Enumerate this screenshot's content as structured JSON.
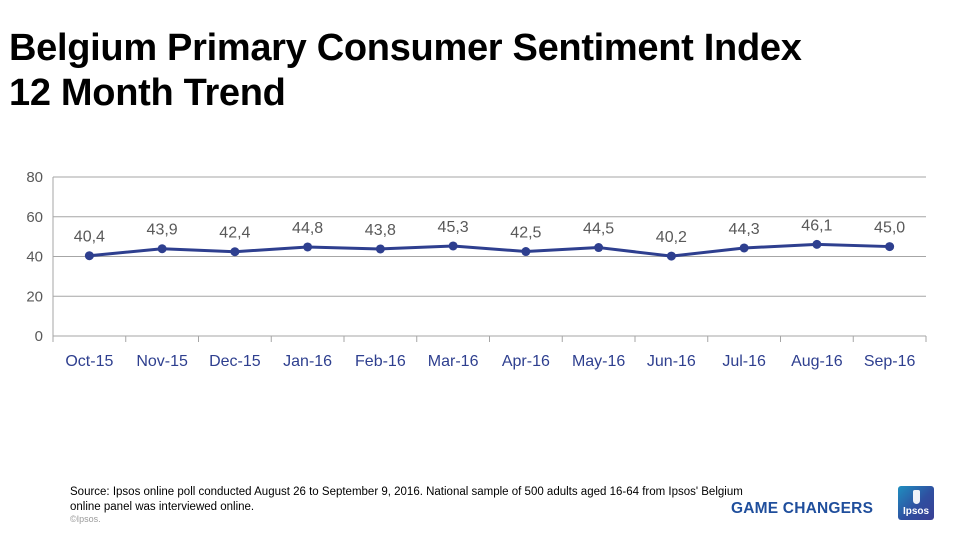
{
  "header": {
    "title_line1": "Belgium Primary Consumer Sentiment Index",
    "title_line2": "12 Month Trend"
  },
  "chart_data": {
    "type": "line",
    "categories": [
      "Oct-15",
      "Nov-15",
      "Dec-15",
      "Jan-16",
      "Feb-16",
      "Mar-16",
      "Apr-16",
      "May-16",
      "Jun-16",
      "Jul-16",
      "Aug-16",
      "Sep-16"
    ],
    "series": [
      {
        "name": "Primary Consumer Sentiment Index",
        "values": [
          40.4,
          43.9,
          42.4,
          44.8,
          43.8,
          45.3,
          42.5,
          44.5,
          40.2,
          44.3,
          46.1,
          45.0
        ],
        "labels": [
          "40,4",
          "43,9",
          "42,4",
          "44,8",
          "43,8",
          "45,3",
          "42,5",
          "44,5",
          "40,2",
          "44,3",
          "46,1",
          "45,0"
        ]
      }
    ],
    "yticks": [
      0,
      20,
      40,
      60,
      80
    ],
    "ylim": [
      0,
      80
    ],
    "grid": true,
    "xlabel": "",
    "ylabel": "",
    "line_color": "#2e3f8f",
    "label_color": "#595959",
    "tick_color": "#2e3f8f"
  },
  "footer": {
    "source": "Source: Ipsos online poll conducted August 26 to September 9, 2016. National sample of 500 adults aged 16-64 from Ipsos' Belgium online panel was interviewed online.",
    "copyright": "©Ipsos.",
    "tagline": "GAME CHANGERS",
    "logo_text": "Ipsos"
  }
}
